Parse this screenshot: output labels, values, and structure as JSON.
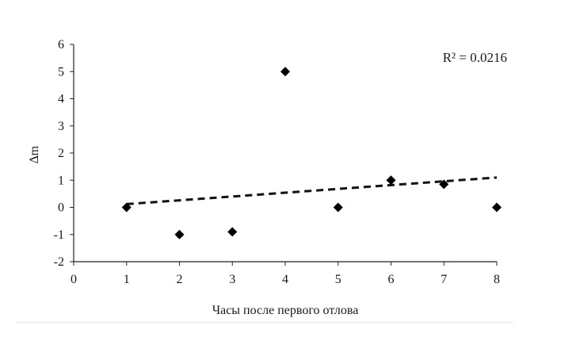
{
  "chart_data": {
    "type": "scatter",
    "title": "",
    "xlabel": "Часы после первого отлова",
    "ylabel": "∆m",
    "xlim": [
      0,
      8
    ],
    "ylim": [
      -2,
      6
    ],
    "x_ticks": [
      "0",
      "1",
      "2",
      "3",
      "4",
      "5",
      "6",
      "7",
      "8"
    ],
    "y_ticks": [
      "-2",
      "-1",
      "0",
      "1",
      "2",
      "3",
      "4",
      "5",
      "6"
    ],
    "grid": false,
    "legend": "none",
    "marker": "diamond",
    "marker_color": "#000000",
    "points": [
      {
        "x": 1,
        "y": 0
      },
      {
        "x": 2,
        "y": -1
      },
      {
        "x": 3,
        "y": -0.9
      },
      {
        "x": 4,
        "y": 5
      },
      {
        "x": 5,
        "y": 0
      },
      {
        "x": 6,
        "y": 1
      },
      {
        "x": 7,
        "y": 0.85
      },
      {
        "x": 8,
        "y": 0
      }
    ],
    "trendline": {
      "type": "linear",
      "style": "dashed",
      "x_start": 1,
      "y_start": 0.12,
      "x_end": 8,
      "y_end": 1.1
    },
    "annotation": "R² = 0.0216"
  }
}
